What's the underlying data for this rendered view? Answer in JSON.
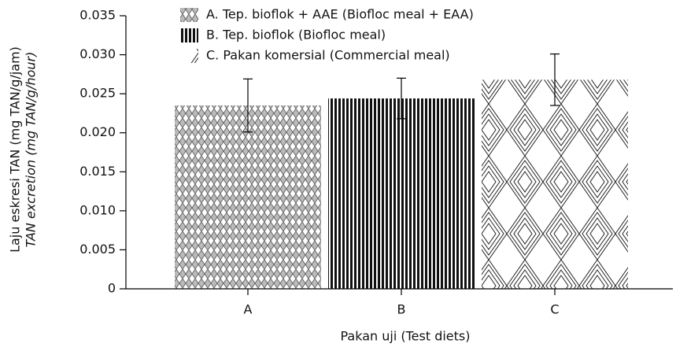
{
  "chart_data": {
    "type": "bar",
    "xlabel": "Pakan uji (Test diets)",
    "ylabel": [
      "Laju eskresi TAN (mg TAN/g/jam)",
      "TAN excretion (mg TAN/g/hour)"
    ],
    "categories": [
      "A",
      "B",
      "C"
    ],
    "values": [
      0.0235,
      0.0244,
      0.0268
    ],
    "errors": [
      0.0034,
      0.0026,
      0.0033
    ],
    "legend": [
      "A. Tep. bioflok + AAE (Biofloc meal + EAA)",
      "B. Tep. bioflok (Biofloc meal)",
      "C. Pakan komersial (Commercial meal)"
    ],
    "ylim": [
      0,
      0.035
    ],
    "yticks": [
      0,
      0.005,
      {
        "value": 0.01,
        "label": "0.010"
      },
      0.015,
      {
        "value": 0.02,
        "label": "0.020"
      },
      0.025,
      {
        "value": 0.03,
        "label": "0.030"
      },
      0.035
    ]
  }
}
